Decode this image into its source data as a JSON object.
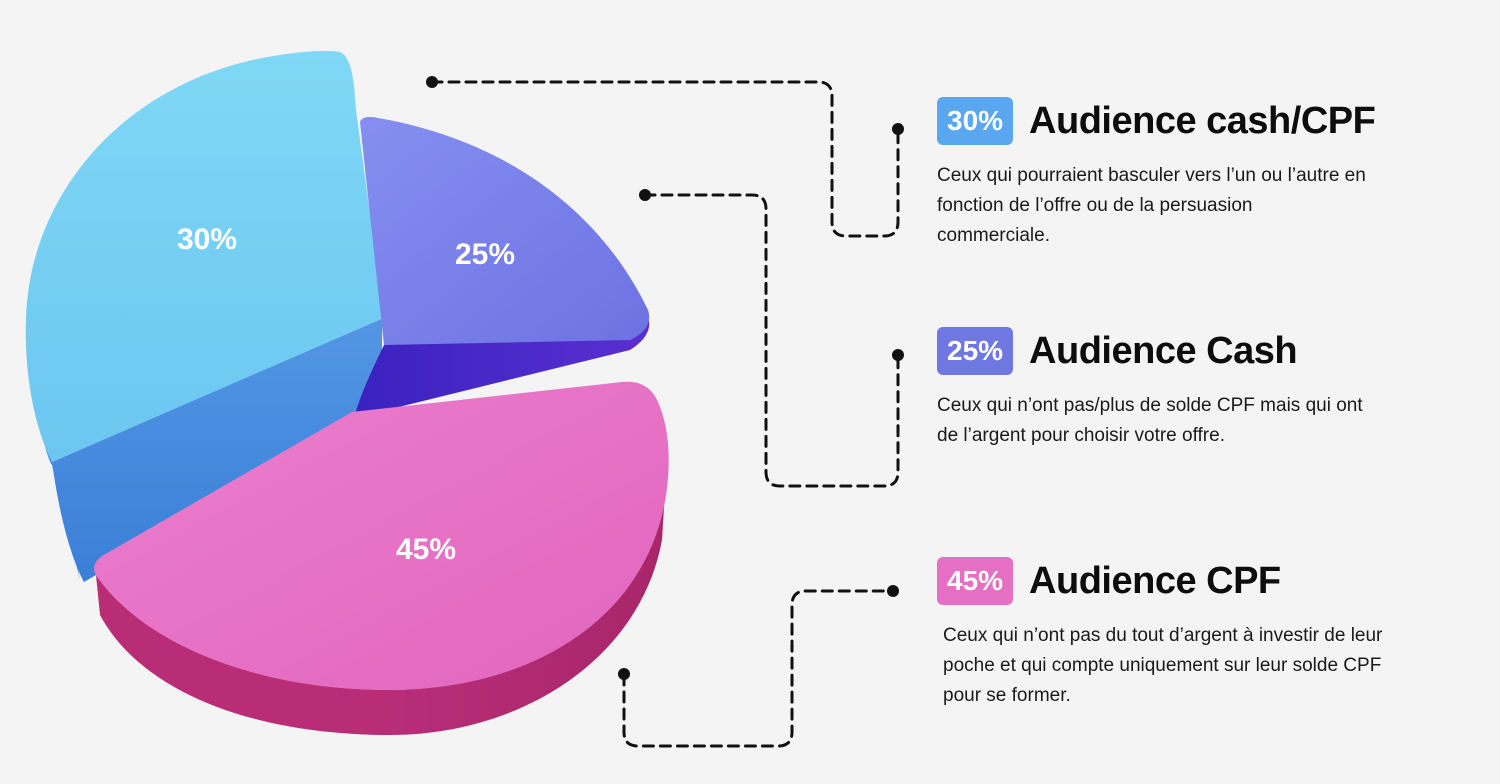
{
  "chart_data": {
    "type": "pie",
    "values": [
      30,
      25,
      45
    ],
    "slice_labels": [
      "30%",
      "25%",
      "45%"
    ],
    "colors": [
      "#7dd3f3",
      "#7f86e8",
      "#e86fc5"
    ],
    "side_colors": [
      "#4a8fe0",
      "#4a2fc8",
      "#c2357f"
    ]
  },
  "legend": [
    {
      "badge": "30%",
      "title": "Audience cash/CPF",
      "description": "Ceux qui pourraient basculer vers l’un ou l’autre en fonction de l’offre ou de la persuasion commerciale.",
      "badge_color": "#5aa7f0"
    },
    {
      "badge": "25%",
      "title": "Audience Cash",
      "description": "Ceux qui n’ont pas/plus de solde CPF mais qui ont de l’argent pour choisir votre offre.",
      "badge_color": "#6f78e0"
    },
    {
      "badge": "45%",
      "title": "Audience CPF",
      "description": "Ceux qui n’ont pas du tout d’argent à investir de leur poche et qui compte uniquement sur leur solde CPF pour se former.",
      "badge_color": "#e46fc3"
    }
  ]
}
